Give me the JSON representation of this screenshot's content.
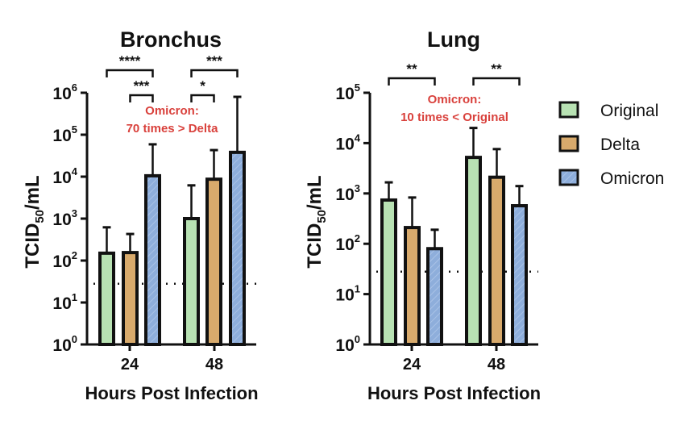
{
  "chart_data": [
    {
      "type": "bar",
      "title": "Bronchus",
      "xlabel": "Hours Post Infection",
      "ylabel": "TCID50/mL",
      "yscale": "log",
      "ylim": [
        1,
        1000000
      ],
      "yticks": [
        1,
        10,
        100,
        1000,
        10000,
        100000,
        1000000
      ],
      "categories": [
        "24",
        "48"
      ],
      "series": [
        {
          "name": "Original",
          "values": [
            150,
            1000
          ],
          "error_upper": [
            620,
            6200
          ]
        },
        {
          "name": "Delta",
          "values": [
            155,
            8700
          ],
          "error_upper": [
            430,
            43000
          ]
        },
        {
          "name": "Omicron",
          "values": [
            10500,
            38000
          ],
          "error_upper": [
            59000,
            800000
          ]
        }
      ],
      "detection_limit": 28,
      "annotation": [
        "Omicron:",
        "70 times > Delta"
      ],
      "significance": [
        {
          "group": "24",
          "from": "Original",
          "to": "Omicron",
          "label": "****"
        },
        {
          "group": "24",
          "from": "Delta",
          "to": "Omicron",
          "label": "***"
        },
        {
          "group": "48",
          "from": "Original",
          "to": "Omicron",
          "label": "***"
        },
        {
          "group": "48",
          "from": "Original",
          "to": "Delta",
          "label": "*"
        }
      ]
    },
    {
      "type": "bar",
      "title": "Lung",
      "xlabel": "Hours Post Infection",
      "ylabel": "TCID50/mL",
      "yscale": "log",
      "ylim": [
        1,
        100000
      ],
      "yticks": [
        1,
        10,
        100,
        1000,
        10000,
        100000
      ],
      "categories": [
        "24",
        "48"
      ],
      "series": [
        {
          "name": "Original",
          "values": [
            740,
            5200
          ],
          "error_upper": [
            1660,
            20000
          ]
        },
        {
          "name": "Delta",
          "values": [
            210,
            2100
          ],
          "error_upper": [
            830,
            7600
          ]
        },
        {
          "name": "Omicron",
          "values": [
            80,
            570
          ],
          "error_upper": [
            190,
            1400
          ]
        }
      ],
      "detection_limit": 28,
      "annotation": [
        "Omicron:",
        "10 times < Original"
      ],
      "significance": [
        {
          "group": "24",
          "from": "Original",
          "to": "Omicron",
          "label": "**"
        },
        {
          "group": "48",
          "from": "Original",
          "to": "Omicron",
          "label": "**"
        }
      ]
    }
  ],
  "legend": {
    "position": "right",
    "items": [
      {
        "name": "Original",
        "color": "#b8e2b3"
      },
      {
        "name": "Delta",
        "color": "#d8aa6c"
      },
      {
        "name": "Omicron",
        "color": "#8eaedb"
      }
    ]
  },
  "annotation_color": "#d9413c"
}
